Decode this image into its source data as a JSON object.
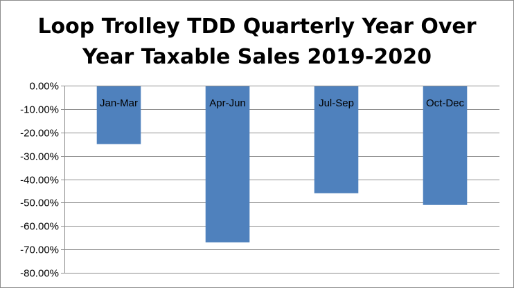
{
  "chart_data": {
    "type": "bar",
    "title_lines": [
      "Loop Trolley TDD Quarterly Year Over",
      "Year Taxable Sales 2019-2020"
    ],
    "categories": [
      "Jan-Mar",
      "Apr-Jun",
      "Jul-Sep",
      "Oct-Dec"
    ],
    "values": [
      -25,
      -67,
      -46,
      -51
    ],
    "ylim": [
      -80,
      0
    ],
    "yticks": [
      0,
      -10,
      -20,
      -30,
      -40,
      -50,
      -60,
      -70,
      -80
    ],
    "ytick_labels": [
      "0.00%",
      "-10.00%",
      "-20.00%",
      "-30.00%",
      "-40.00%",
      "-50.00%",
      "-60.00%",
      "-70.00%",
      "-80.00%"
    ],
    "xlabel": "",
    "ylabel": "",
    "grid": true,
    "legend": "none",
    "bar_color": "#4F81BD",
    "grid_color": "#8c8c8c"
  }
}
